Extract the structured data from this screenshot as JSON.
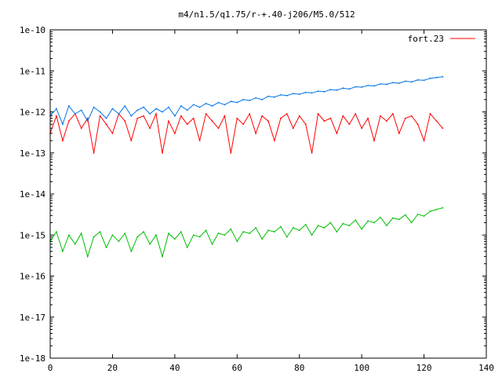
{
  "chart_data": {
    "type": "line",
    "title": "m4/n1.5/q1.75/r-+.40-j206/M5.0/512",
    "xlabel": "",
    "ylabel": "",
    "xlim": [
      0,
      140
    ],
    "ylim": [
      1e-18,
      1e-10
    ],
    "yscale": "log",
    "grid": false,
    "legend_position": "top-right",
    "x_ticks": [
      0,
      20,
      40,
      60,
      80,
      100,
      120,
      140
    ],
    "x_tick_labels": [
      "0",
      "20",
      "40",
      "60",
      "80",
      "100",
      "120",
      "140"
    ],
    "y_ticks": [
      1e-18,
      1e-17,
      1e-16,
      1e-15,
      1e-14,
      1e-13,
      1e-12,
      1e-11,
      1e-10
    ],
    "y_tick_labels": [
      "1e-18",
      "1e-17",
      "1e-16",
      "1e-15",
      "1e-14",
      "1e-13",
      "1e-12",
      "1e-11",
      "1e-10"
    ],
    "series": [
      {
        "name": "fort.23",
        "color": "#ff0000",
        "x": [
          0,
          2,
          4,
          6,
          8,
          10,
          12,
          14,
          16,
          18,
          20,
          22,
          24,
          26,
          28,
          30,
          32,
          34,
          36,
          38,
          40,
          42,
          44,
          46,
          48,
          50,
          52,
          54,
          56,
          58,
          60,
          62,
          64,
          66,
          68,
          70,
          72,
          74,
          76,
          78,
          80,
          82,
          84,
          86,
          88,
          90,
          92,
          94,
          96,
          98,
          100,
          102,
          104,
          106,
          108,
          110,
          112,
          114,
          116,
          118,
          120,
          122,
          124,
          126
        ],
        "y": [
          3e-13,
          8e-13,
          2e-13,
          6e-13,
          9e-13,
          4e-13,
          7e-13,
          1e-13,
          8e-13,
          5e-13,
          3e-13,
          9e-13,
          6e-13,
          2e-13,
          7e-13,
          8e-13,
          4e-13,
          9e-13,
          1e-13,
          6e-13,
          3e-13,
          8e-13,
          5e-13,
          7e-13,
          2e-13,
          9e-13,
          6e-13,
          4e-13,
          8e-13,
          1e-13,
          7e-13,
          5e-13,
          9e-13,
          3e-13,
          8e-13,
          6e-13,
          2e-13,
          7e-13,
          9e-13,
          4e-13,
          8e-13,
          5e-13,
          1e-13,
          9e-13,
          6e-13,
          7e-13,
          3e-13,
          8e-13,
          5e-13,
          9e-13,
          4e-13,
          7e-13,
          2e-13,
          8e-13,
          6e-13,
          9e-13,
          3e-13,
          7e-13,
          8e-13,
          5e-13,
          2e-13,
          9e-13,
          6e-13,
          4e-13
        ]
      },
      {
        "name": "",
        "color": "#0073e6",
        "x": [
          0,
          2,
          4,
          6,
          8,
          10,
          12,
          14,
          16,
          18,
          20,
          22,
          24,
          26,
          28,
          30,
          32,
          34,
          36,
          38,
          40,
          42,
          44,
          46,
          48,
          50,
          52,
          54,
          56,
          58,
          60,
          62,
          64,
          66,
          68,
          70,
          72,
          74,
          76,
          78,
          80,
          82,
          84,
          86,
          88,
          90,
          92,
          94,
          96,
          98,
          100,
          102,
          104,
          106,
          108,
          110,
          112,
          114,
          116,
          118,
          120,
          122,
          124,
          126
        ],
        "y": [
          8e-13,
          1.2e-12,
          5e-13,
          1.4e-12,
          9e-13,
          1.1e-12,
          6e-13,
          1.3e-12,
          1e-12,
          7e-13,
          1.2e-12,
          9e-13,
          1.4e-12,
          8e-13,
          1.1e-12,
          1.3e-12,
          9e-13,
          1.2e-12,
          1e-12,
          1.3e-12,
          8e-13,
          1.4e-12,
          1.1e-12,
          1.5e-12,
          1.3e-12,
          1.6e-12,
          1.4e-12,
          1.7e-12,
          1.5e-12,
          1.8e-12,
          1.7e-12,
          2e-12,
          1.9e-12,
          2.2e-12,
          2e-12,
          2.4e-12,
          2.3e-12,
          2.6e-12,
          2.5e-12,
          2.8e-12,
          2.7e-12,
          3e-12,
          2.9e-12,
          3.2e-12,
          3.1e-12,
          3.5e-12,
          3.4e-12,
          3.8e-12,
          3.6e-12,
          4.1e-12,
          4e-12,
          4.4e-12,
          4.3e-12,
          4.8e-12,
          4.7e-12,
          5.2e-12,
          5e-12,
          5.6e-12,
          5.4e-12,
          6e-12,
          5.9e-12,
          6.6e-12,
          6.9e-12,
          7.2e-12
        ]
      },
      {
        "name": "",
        "color": "#00bf00",
        "x": [
          0,
          2,
          4,
          6,
          8,
          10,
          12,
          14,
          16,
          18,
          20,
          22,
          24,
          26,
          28,
          30,
          32,
          34,
          36,
          38,
          40,
          42,
          44,
          46,
          48,
          50,
          52,
          54,
          56,
          58,
          60,
          62,
          64,
          66,
          68,
          70,
          72,
          74,
          76,
          78,
          80,
          82,
          84,
          86,
          88,
          90,
          92,
          94,
          96,
          98,
          100,
          102,
          104,
          106,
          108,
          110,
          112,
          114,
          116,
          118,
          120,
          122,
          124,
          126
        ],
        "y": [
          7e-16,
          1.2e-15,
          4e-16,
          1e-15,
          6e-16,
          1.1e-15,
          3e-16,
          9e-16,
          1.2e-15,
          5e-16,
          1e-15,
          7e-16,
          1.1e-15,
          4e-16,
          9e-16,
          1.2e-15,
          6e-16,
          1e-15,
          3e-16,
          1.1e-15,
          8e-16,
          1.2e-15,
          5e-16,
          1e-15,
          9e-16,
          1.3e-15,
          6e-16,
          1.1e-15,
          1e-15,
          1.4e-15,
          7e-16,
          1.2e-15,
          1.1e-15,
          1.5e-15,
          8e-16,
          1.3e-15,
          1.2e-15,
          1.6e-15,
          9e-16,
          1.5e-15,
          1.3e-15,
          1.8e-15,
          1e-15,
          1.7e-15,
          1.5e-15,
          2e-15,
          1.2e-15,
          1.9e-15,
          1.7e-15,
          2.3e-15,
          1.4e-15,
          2.2e-15,
          2e-15,
          2.7e-15,
          1.7e-15,
          2.6e-15,
          2.4e-15,
          3.1e-15,
          2e-15,
          3.2e-15,
          2.9e-15,
          3.8e-15,
          4.2e-15,
          4.6e-15
        ]
      }
    ]
  }
}
